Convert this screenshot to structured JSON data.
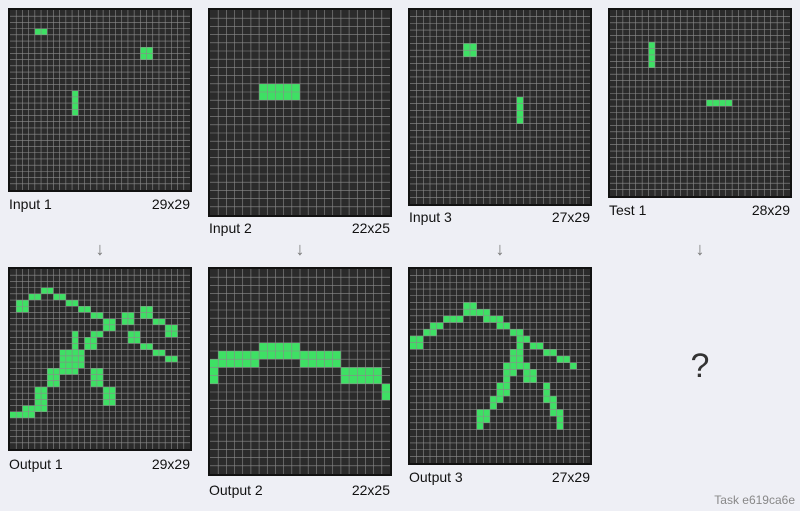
{
  "task_label": "Task e619ca6e",
  "question_mark": "?",
  "arrow_glyph": "↓",
  "colors": {
    "background": "#2b2b2b",
    "grid_line": "#8c8c8c",
    "cell": "#3ee064",
    "border": "#111111"
  },
  "pairs": [
    {
      "input": {
        "label": "Input 1",
        "size_text": "29x29",
        "rows": 29,
        "cols": 29,
        "cells": [
          [
            3,
            4
          ],
          [
            3,
            5
          ],
          [
            6,
            21
          ],
          [
            6,
            22
          ],
          [
            7,
            21
          ],
          [
            7,
            22
          ],
          [
            13,
            10
          ],
          [
            14,
            10
          ],
          [
            15,
            10
          ],
          [
            16,
            10
          ]
        ]
      },
      "output": {
        "label": "Output 1",
        "size_text": "29x29",
        "rows": 29,
        "cols": 29,
        "cells": [
          [
            3,
            5
          ],
          [
            3,
            6
          ],
          [
            4,
            3
          ],
          [
            4,
            4
          ],
          [
            4,
            7
          ],
          [
            4,
            8
          ],
          [
            5,
            1
          ],
          [
            5,
            2
          ],
          [
            5,
            9
          ],
          [
            5,
            10
          ],
          [
            6,
            1
          ],
          [
            6,
            2
          ],
          [
            6,
            11
          ],
          [
            6,
            12
          ],
          [
            6,
            21
          ],
          [
            6,
            22
          ],
          [
            7,
            13
          ],
          [
            7,
            14
          ],
          [
            7,
            18
          ],
          [
            7,
            19
          ],
          [
            7,
            21
          ],
          [
            7,
            22
          ],
          [
            8,
            15
          ],
          [
            8,
            16
          ],
          [
            8,
            18
          ],
          [
            8,
            19
          ],
          [
            8,
            23
          ],
          [
            8,
            24
          ],
          [
            9,
            15
          ],
          [
            9,
            16
          ],
          [
            9,
            25
          ],
          [
            9,
            26
          ],
          [
            10,
            10
          ],
          [
            10,
            13
          ],
          [
            10,
            14
          ],
          [
            10,
            19
          ],
          [
            10,
            20
          ],
          [
            10,
            25
          ],
          [
            10,
            26
          ],
          [
            11,
            10
          ],
          [
            11,
            12
          ],
          [
            11,
            13
          ],
          [
            11,
            19
          ],
          [
            11,
            20
          ],
          [
            12,
            10
          ],
          [
            12,
            12
          ],
          [
            12,
            13
          ],
          [
            12,
            21
          ],
          [
            12,
            22
          ],
          [
            13,
            8
          ],
          [
            13,
            9
          ],
          [
            13,
            10
          ],
          [
            13,
            11
          ],
          [
            13,
            23
          ],
          [
            13,
            24
          ],
          [
            14,
            8
          ],
          [
            14,
            9
          ],
          [
            14,
            10
          ],
          [
            14,
            11
          ],
          [
            14,
            25
          ],
          [
            14,
            26
          ],
          [
            15,
            8
          ],
          [
            15,
            9
          ],
          [
            15,
            10
          ],
          [
            15,
            11
          ],
          [
            16,
            6
          ],
          [
            16,
            7
          ],
          [
            16,
            8
          ],
          [
            16,
            9
          ],
          [
            16,
            10
          ],
          [
            16,
            13
          ],
          [
            16,
            14
          ],
          [
            17,
            6
          ],
          [
            17,
            7
          ],
          [
            17,
            13
          ],
          [
            17,
            14
          ],
          [
            18,
            6
          ],
          [
            18,
            7
          ],
          [
            18,
            13
          ],
          [
            18,
            14
          ],
          [
            19,
            4
          ],
          [
            19,
            5
          ],
          [
            19,
            15
          ],
          [
            19,
            16
          ],
          [
            20,
            4
          ],
          [
            20,
            5
          ],
          [
            20,
            15
          ],
          [
            20,
            16
          ],
          [
            21,
            4
          ],
          [
            21,
            5
          ],
          [
            21,
            15
          ],
          [
            21,
            16
          ],
          [
            22,
            2
          ],
          [
            22,
            3
          ],
          [
            22,
            4
          ],
          [
            22,
            5
          ],
          [
            23,
            0
          ],
          [
            23,
            1
          ],
          [
            23,
            2
          ],
          [
            23,
            3
          ]
        ]
      }
    },
    {
      "input": {
        "label": "Input 2",
        "size_text": "22x25",
        "rows": 25,
        "cols": 22,
        "cells": [
          [
            9,
            6
          ],
          [
            9,
            7
          ],
          [
            9,
            8
          ],
          [
            9,
            9
          ],
          [
            9,
            10
          ],
          [
            10,
            6
          ],
          [
            10,
            7
          ],
          [
            10,
            8
          ],
          [
            10,
            9
          ],
          [
            10,
            10
          ]
        ]
      },
      "output": {
        "label": "Output 2",
        "size_text": "22x25",
        "rows": 25,
        "cols": 22,
        "cells": [
          [
            9,
            6
          ],
          [
            9,
            7
          ],
          [
            9,
            8
          ],
          [
            9,
            9
          ],
          [
            9,
            10
          ],
          [
            10,
            1
          ],
          [
            10,
            2
          ],
          [
            10,
            3
          ],
          [
            10,
            4
          ],
          [
            10,
            5
          ],
          [
            10,
            6
          ],
          [
            10,
            7
          ],
          [
            10,
            8
          ],
          [
            10,
            9
          ],
          [
            10,
            10
          ],
          [
            10,
            11
          ],
          [
            10,
            12
          ],
          [
            10,
            13
          ],
          [
            10,
            14
          ],
          [
            10,
            15
          ],
          [
            11,
            0
          ],
          [
            11,
            1
          ],
          [
            11,
            2
          ],
          [
            11,
            3
          ],
          [
            11,
            4
          ],
          [
            11,
            5
          ],
          [
            11,
            11
          ],
          [
            11,
            12
          ],
          [
            11,
            13
          ],
          [
            11,
            14
          ],
          [
            11,
            15
          ],
          [
            12,
            0
          ],
          [
            12,
            16
          ],
          [
            12,
            17
          ],
          [
            12,
            18
          ],
          [
            12,
            19
          ],
          [
            12,
            20
          ],
          [
            13,
            0
          ],
          [
            13,
            16
          ],
          [
            13,
            17
          ],
          [
            13,
            18
          ],
          [
            13,
            19
          ],
          [
            13,
            20
          ],
          [
            14,
            21
          ],
          [
            15,
            21
          ]
        ]
      }
    },
    {
      "input": {
        "label": "Input 3",
        "size_text": "27x29",
        "rows": 29,
        "cols": 27,
        "cells": [
          [
            5,
            8
          ],
          [
            5,
            9
          ],
          [
            6,
            8
          ],
          [
            6,
            9
          ],
          [
            13,
            16
          ],
          [
            14,
            16
          ],
          [
            15,
            16
          ],
          [
            16,
            16
          ]
        ]
      },
      "output": {
        "label": "Output 3",
        "size_text": "27x29",
        "rows": 29,
        "cols": 27,
        "cells": [
          [
            5,
            8
          ],
          [
            5,
            9
          ],
          [
            6,
            8
          ],
          [
            6,
            9
          ],
          [
            6,
            10
          ],
          [
            6,
            11
          ],
          [
            7,
            5
          ],
          [
            7,
            6
          ],
          [
            7,
            7
          ],
          [
            7,
            11
          ],
          [
            7,
            12
          ],
          [
            7,
            13
          ],
          [
            8,
            3
          ],
          [
            8,
            4
          ],
          [
            8,
            13
          ],
          [
            8,
            14
          ],
          [
            9,
            2
          ],
          [
            9,
            3
          ],
          [
            9,
            15
          ],
          [
            9,
            16
          ],
          [
            10,
            0
          ],
          [
            10,
            1
          ],
          [
            10,
            16
          ],
          [
            10,
            17
          ],
          [
            11,
            0
          ],
          [
            11,
            1
          ],
          [
            11,
            16
          ],
          [
            11,
            18
          ],
          [
            11,
            19
          ],
          [
            12,
            15
          ],
          [
            12,
            16
          ],
          [
            12,
            20
          ],
          [
            12,
            21
          ],
          [
            13,
            15
          ],
          [
            13,
            16
          ],
          [
            13,
            22
          ],
          [
            13,
            23
          ],
          [
            14,
            14
          ],
          [
            14,
            15
          ],
          [
            14,
            16
          ],
          [
            14,
            17
          ],
          [
            14,
            24
          ],
          [
            15,
            14
          ],
          [
            15,
            15
          ],
          [
            15,
            17
          ],
          [
            15,
            18
          ],
          [
            16,
            14
          ],
          [
            16,
            17
          ],
          [
            16,
            18
          ],
          [
            17,
            13
          ],
          [
            17,
            14
          ],
          [
            17,
            20
          ],
          [
            18,
            13
          ],
          [
            18,
            14
          ],
          [
            18,
            20
          ],
          [
            19,
            12
          ],
          [
            19,
            13
          ],
          [
            19,
            20
          ],
          [
            19,
            21
          ],
          [
            20,
            12
          ],
          [
            20,
            21
          ],
          [
            21,
            10
          ],
          [
            21,
            11
          ],
          [
            21,
            21
          ],
          [
            21,
            22
          ],
          [
            22,
            10
          ],
          [
            22,
            11
          ],
          [
            22,
            22
          ],
          [
            23,
            10
          ],
          [
            23,
            22
          ]
        ]
      }
    }
  ],
  "test": {
    "label": "Test 1",
    "size_text": "28x29",
    "rows": 29,
    "cols": 28,
    "cells": [
      [
        5,
        6
      ],
      [
        6,
        6
      ],
      [
        7,
        6
      ],
      [
        8,
        6
      ],
      [
        14,
        15
      ],
      [
        14,
        16
      ],
      [
        14,
        17
      ],
      [
        14,
        18
      ]
    ]
  }
}
